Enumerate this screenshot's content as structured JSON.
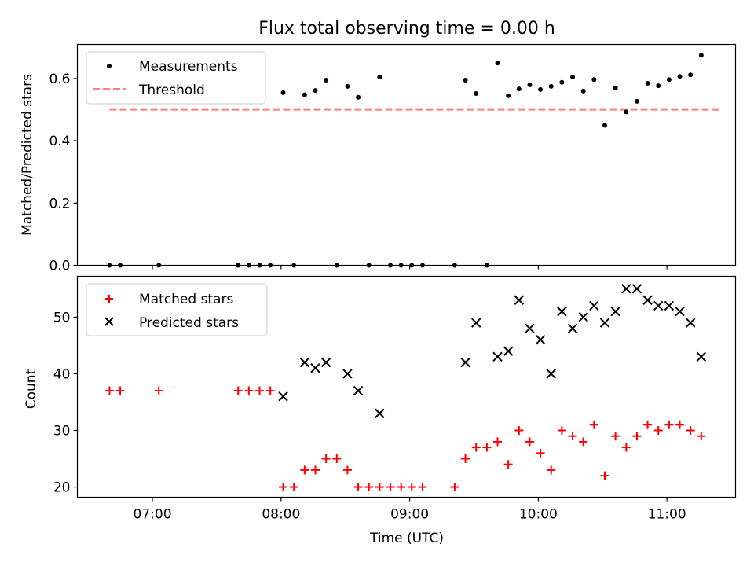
{
  "chart_data": [
    {
      "type": "scatter",
      "title": "Flux total observing time = 0.00 h",
      "xlabel": "",
      "ylabel": "Matched/Predicted stars",
      "xlim": [
        "06:25",
        "11:32"
      ],
      "ylim": [
        0,
        0.71
      ],
      "xticks": [
        "07:00",
        "08:00",
        "09:00",
        "10:00",
        "11:00"
      ],
      "yticks": [
        "0.0",
        "0.2",
        "0.4",
        "0.6"
      ],
      "legend_position": "top-left",
      "threshold": {
        "name": "Threshold",
        "value": 0.5,
        "x_start": "06:40",
        "x_end": "11:25",
        "color": "#ff7f7f"
      },
      "series": [
        {
          "name": "Measurements",
          "color": "#000000",
          "x": [
            "06:40",
            "06:45",
            "07:03",
            "07:40",
            "07:45",
            "07:50",
            "07:55",
            "08:01",
            "08:06",
            "08:11",
            "08:16",
            "08:21",
            "08:26",
            "08:31",
            "08:36",
            "08:41",
            "08:46",
            "08:51",
            "08:56",
            "09:01",
            "09:06",
            "09:21",
            "09:26",
            "09:31",
            "09:36",
            "09:41",
            "09:46",
            "09:51",
            "09:56",
            "10:01",
            "10:06",
            "10:11",
            "10:16",
            "10:21",
            "10:26",
            "10:31",
            "10:36",
            "10:41",
            "10:46",
            "10:51",
            "10:56",
            "11:01",
            "11:06",
            "11:11",
            "11:16"
          ],
          "y": [
            0,
            0,
            0,
            0,
            0,
            0,
            0,
            0.555,
            0,
            0.548,
            0.562,
            0.595,
            0,
            0.575,
            0.54,
            0,
            0.605,
            0,
            0,
            0,
            0,
            0,
            0.595,
            0.552,
            0,
            0.65,
            0.545,
            0.567,
            0.58,
            0.565,
            0.575,
            0.588,
            0.605,
            0.56,
            0.597,
            0.45,
            0.57,
            0.493,
            0.527,
            0.585,
            0.577,
            0.597,
            0.607,
            0.612,
            0.675
          ]
        }
      ]
    },
    {
      "type": "scatter",
      "title": "",
      "xlabel": "Time (UTC)",
      "ylabel": "Count",
      "xlim": [
        "06:25",
        "11:32"
      ],
      "ylim": [
        18.2,
        57.2
      ],
      "xticks": [
        "07:00",
        "08:00",
        "09:00",
        "10:00",
        "11:00"
      ],
      "yticks": [
        "20",
        "30",
        "40",
        "50"
      ],
      "legend_position": "top-left",
      "series": [
        {
          "name": "Matched stars",
          "marker": "plus",
          "color": "#ff0000",
          "x": [
            "06:40",
            "06:45",
            "07:03",
            "07:40",
            "07:45",
            "07:50",
            "07:55",
            "08:01",
            "08:06",
            "08:11",
            "08:16",
            "08:21",
            "08:26",
            "08:31",
            "08:36",
            "08:41",
            "08:46",
            "08:51",
            "08:56",
            "09:01",
            "09:06",
            "09:21",
            "09:26",
            "09:31",
            "09:36",
            "09:41",
            "09:46",
            "09:51",
            "09:56",
            "10:01",
            "10:06",
            "10:11",
            "10:16",
            "10:21",
            "10:26",
            "10:31",
            "10:36",
            "10:41",
            "10:46",
            "10:51",
            "10:56",
            "11:01",
            "11:06",
            "11:11",
            "11:16"
          ],
          "y": [
            37,
            37,
            37,
            37,
            37,
            37,
            37,
            20,
            20,
            23,
            23,
            25,
            25,
            23,
            20,
            20,
            20,
            20,
            20,
            20,
            20,
            20,
            25,
            27,
            27,
            28,
            24,
            30,
            28,
            26,
            23,
            30,
            29,
            28,
            31,
            22,
            29,
            27,
            29,
            31,
            30,
            31,
            31,
            30,
            29
          ]
        },
        {
          "name": "Predicted stars",
          "marker": "x",
          "color": "#000000",
          "x": [
            "08:01",
            "08:11",
            "08:16",
            "08:21",
            "08:31",
            "08:36",
            "08:46",
            "09:26",
            "09:31",
            "09:41",
            "09:46",
            "09:51",
            "09:56",
            "10:01",
            "10:06",
            "10:11",
            "10:16",
            "10:21",
            "10:26",
            "10:31",
            "10:36",
            "10:41",
            "10:46",
            "10:51",
            "10:56",
            "11:01",
            "11:06",
            "11:11",
            "11:16"
          ],
          "y": [
            36,
            42,
            41,
            42,
            40,
            37,
            33,
            42,
            49,
            43,
            44,
            53,
            48,
            46,
            40,
            51,
            48,
            50,
            52,
            49,
            51,
            55,
            55,
            53,
            52,
            52,
            51,
            49,
            43
          ]
        }
      ]
    }
  ]
}
